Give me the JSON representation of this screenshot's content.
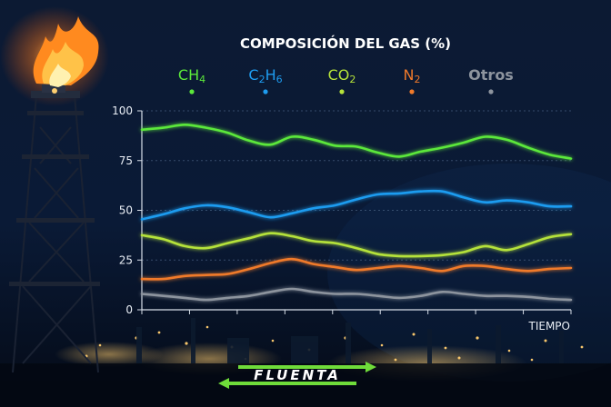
{
  "colors": {
    "ch4": "#5be83a",
    "c2h6": "#1e9cf0",
    "co2": "#b5e23a",
    "n2": "#f07a2a",
    "otros": "#8d949e",
    "text": "#ffffff",
    "brand_accent": "#6fdc3a"
  },
  "chart_data": {
    "type": "line",
    "title": "COMPOSICIÓN DEL GAS (%)",
    "xlabel": "TIEMPO",
    "ylabel": "",
    "ylim": [
      0,
      100
    ],
    "yticks": [
      "0",
      "25",
      "50",
      "75",
      "100"
    ],
    "grid": true,
    "legend_position": "top",
    "x": [
      0,
      0.5,
      1,
      1.5,
      2,
      2.5,
      3,
      3.5,
      4,
      4.5,
      5,
      5.5,
      6,
      6.5,
      7,
      7.5,
      8,
      8.5,
      9,
      9.5,
      10
    ],
    "series": [
      {
        "key": "ch4",
        "name": "CH₄",
        "name_base": "CH",
        "name_sub": "4",
        "values": [
          90.5,
          91.5,
          93,
          91.5,
          89,
          85,
          83,
          87,
          85.5,
          82.5,
          82,
          79,
          77,
          79.5,
          81.5,
          84,
          87,
          85.5,
          81.5,
          78,
          76
        ]
      },
      {
        "key": "c2h6",
        "name": "C₂H₆",
        "name_base": "",
        "name_sub": "",
        "values": [
          45.5,
          48,
          51,
          52.5,
          51.5,
          49,
          46.5,
          48.5,
          51,
          52.5,
          55.5,
          58,
          58.5,
          59.5,
          59.5,
          56.5,
          54,
          55,
          54,
          52,
          52
        ]
      },
      {
        "key": "co2",
        "name": "CO₂",
        "name_base": "CO",
        "name_sub": "2",
        "values": [
          37.5,
          35.5,
          32,
          31,
          33.5,
          36,
          38.5,
          37,
          34.5,
          33.5,
          31,
          28,
          27,
          27,
          27.5,
          29,
          32,
          30,
          33,
          36.5,
          38
        ]
      },
      {
        "key": "n2",
        "name": "N₂",
        "name_base": "N",
        "name_sub": "2",
        "values": [
          15.5,
          15.5,
          17,
          17.5,
          18,
          20.5,
          23.5,
          25.5,
          23,
          21.5,
          20,
          21,
          22,
          21,
          19.5,
          22,
          22,
          20.5,
          19.5,
          20.5,
          21
        ]
      },
      {
        "key": "otros",
        "name": "Otros",
        "name_base": "Otros",
        "name_sub": "",
        "values": [
          8,
          7,
          6,
          5,
          6,
          7,
          9,
          10.5,
          9,
          8,
          8,
          7,
          6,
          7,
          9,
          8,
          7,
          7,
          6.5,
          5.5,
          5
        ]
      }
    ]
  },
  "brand": {
    "logo_text": "FLUENTA"
  }
}
